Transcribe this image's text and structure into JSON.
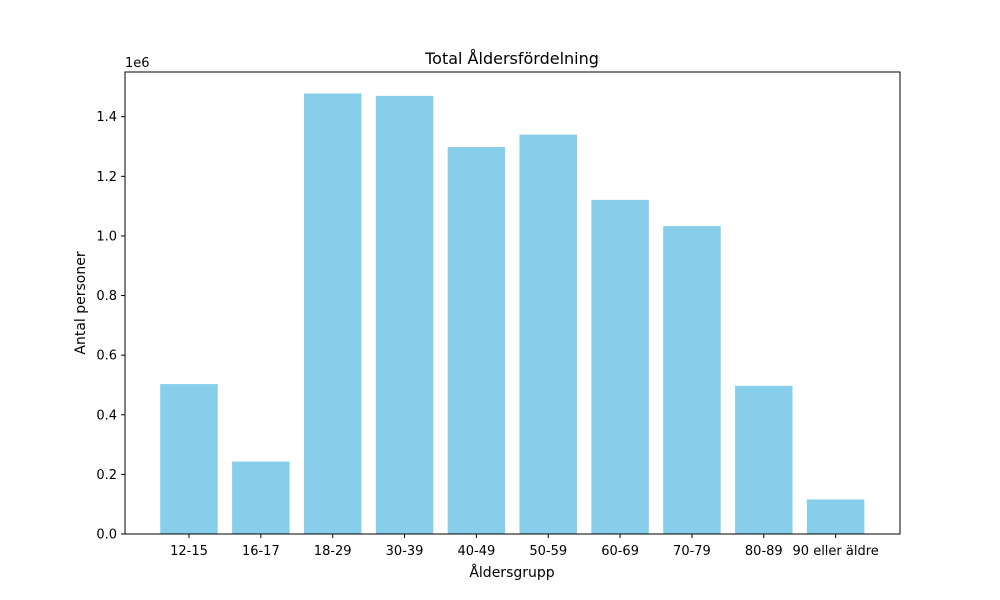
{
  "chart_data": {
    "type": "bar",
    "title": "Total Åldersfördelning",
    "xlabel": "Åldersgrupp",
    "ylabel": "Antal personer",
    "y_offset_label": "1e6",
    "ylim": [
      0,
      1.55
    ],
    "yticks": [
      "0.0",
      "0.2",
      "0.4",
      "0.6",
      "0.8",
      "1.0",
      "1.2",
      "1.4"
    ],
    "y_unit_multiplier": 1000000,
    "categories": [
      "12-15",
      "16-17",
      "18-29",
      "30-39",
      "40-49",
      "50-59",
      "60-69",
      "70-79",
      "80-89",
      "90 eller äldre"
    ],
    "values": [
      0.503,
      0.243,
      1.478,
      1.47,
      1.298,
      1.34,
      1.121,
      1.033,
      0.497,
      0.116
    ],
    "bar_color": "#87CEEB",
    "grid": false,
    "legend": "none"
  }
}
